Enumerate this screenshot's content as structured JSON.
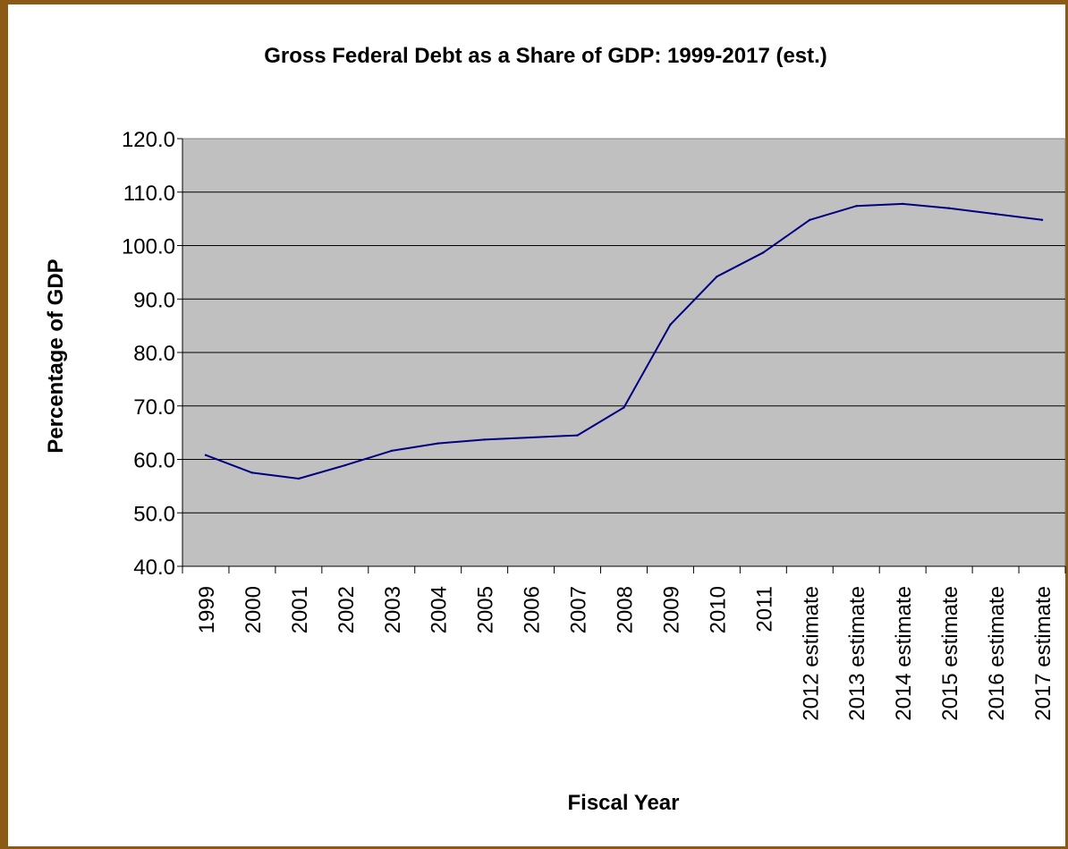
{
  "chart_data": {
    "type": "line",
    "title": "Gross Federal Debt as a Share of GDP: 1999-2017 (est.)",
    "xlabel": "Fiscal Year",
    "ylabel": "Percentage of GDP",
    "ylim": [
      40,
      120
    ],
    "y_ticks": [
      "40.0",
      "50.0",
      "60.0",
      "70.0",
      "80.0",
      "90.0",
      "100.0",
      "110.0",
      "120.0"
    ],
    "grid": true,
    "legend": "none",
    "categories": [
      "1999",
      "2000",
      "2001",
      "2002",
      "2003",
      "2004",
      "2005",
      "2006",
      "2007",
      "2008",
      "2009",
      "2010",
      "2011",
      "2012 estimate",
      "2013 estimate",
      "2014 estimate",
      "2015 estimate",
      "2016 estimate",
      "2017 estimate"
    ],
    "series": [
      {
        "values": [
          60.8,
          57.5,
          56.4,
          58.9,
          61.6,
          63.0,
          63.7,
          64.1,
          64.5,
          69.7,
          85.2,
          94.2,
          98.7,
          104.8,
          107.4,
          107.8,
          107.0,
          105.9,
          104.8
        ]
      }
    ],
    "colors": {
      "line": "#000080",
      "plot_background": "#C0C0C0",
      "frame": "#8B5A14"
    }
  }
}
